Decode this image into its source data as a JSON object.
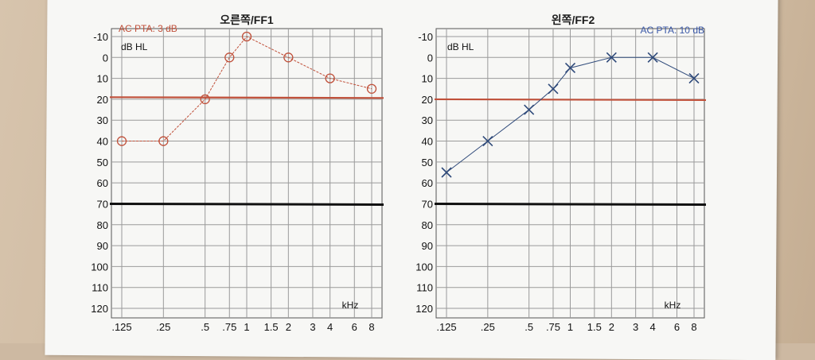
{
  "chart_data": [
    {
      "type": "line",
      "title": "오른쪽/FF1",
      "subtitle": "AC PTA: 3 dB",
      "ylabel": "dB HL",
      "xlabel": "kHz",
      "x_ticks": [
        ".125",
        ".25",
        ".5",
        ".75",
        "1",
        "1.5",
        "2",
        "3",
        "4",
        "6",
        "8"
      ],
      "y_ticks": [
        "-10",
        "0",
        "10",
        "20",
        "30",
        "40",
        "50",
        "60",
        "70",
        "80",
        "90",
        "100",
        "110",
        "120"
      ],
      "ylim": [
        -10,
        120
      ],
      "grid": true,
      "series": [
        {
          "marker": "circle",
          "color": "#c0503a",
          "x": [
            ".125",
            ".25",
            ".5",
            ".75",
            "1",
            "2",
            "4",
            "8"
          ],
          "y": [
            40,
            40,
            20,
            0,
            -10,
            0,
            10,
            15
          ]
        }
      ],
      "reference_lines": [
        {
          "y": 19,
          "color": "#c0503a"
        },
        {
          "y": 70,
          "color": "#111111"
        }
      ]
    },
    {
      "type": "line",
      "title": "왼쪽/FF2",
      "subtitle": "AC PTA: 10 dB",
      "ylabel": "dB HL",
      "xlabel": "kHz",
      "x_ticks": [
        ".125",
        ".25",
        ".5",
        ".75",
        "1",
        "1.5",
        "2",
        "3",
        "4",
        "6",
        "8"
      ],
      "y_ticks": [
        "-10",
        "0",
        "10",
        "20",
        "30",
        "40",
        "50",
        "60",
        "70",
        "80",
        "90",
        "100",
        "110",
        "120"
      ],
      "ylim": [
        -10,
        120
      ],
      "grid": true,
      "series": [
        {
          "marker": "cross",
          "color": "#2f4a7a",
          "x": [
            ".125",
            ".25",
            ".5",
            ".75",
            "1",
            "2",
            "4",
            "8"
          ],
          "y": [
            55,
            40,
            25,
            15,
            5,
            0,
            0,
            10
          ]
        }
      ],
      "reference_lines": [
        {
          "y": 20,
          "color": "#c0503a"
        },
        {
          "y": 70,
          "color": "#111111"
        }
      ]
    }
  ]
}
